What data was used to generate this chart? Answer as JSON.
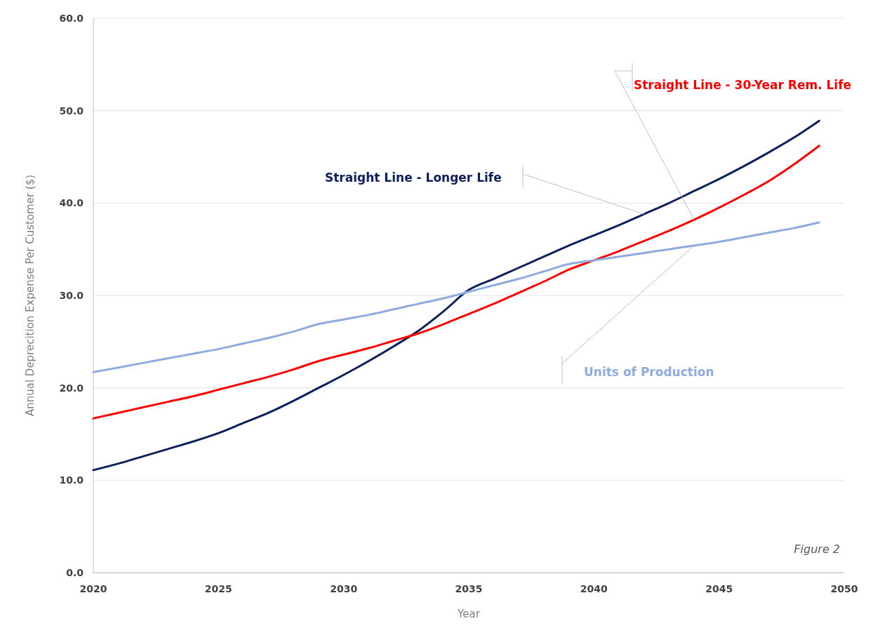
{
  "chart_data": {
    "type": "line",
    "xlabel": "Year",
    "ylabel": "Annual Deprecition Expense Per Customer ($)",
    "x": [
      2020,
      2021,
      2022,
      2023,
      2024,
      2025,
      2026,
      2027,
      2028,
      2029,
      2030,
      2031,
      2032,
      2033,
      2034,
      2035,
      2036,
      2037,
      2038,
      2039,
      2040,
      2041,
      2042,
      2043,
      2044,
      2045,
      2046,
      2047,
      2048,
      2049
    ],
    "series": [
      {
        "name": "Straight Line - Longer Life",
        "color": "#0d1f5c",
        "values": [
          11.1,
          11.8,
          12.6,
          13.4,
          14.2,
          15.1,
          16.2,
          17.3,
          18.6,
          20.0,
          21.4,
          22.9,
          24.5,
          26.2,
          28.3,
          30.6,
          31.8,
          33.0,
          34.2,
          35.4,
          36.5,
          37.6,
          38.8,
          40.0,
          41.3,
          42.6,
          44.0,
          45.5,
          47.1,
          48.9
        ]
      },
      {
        "name": "Straight Line - 30-Year Rem. Life",
        "color": "#ff0000",
        "values": [
          16.7,
          17.3,
          17.9,
          18.5,
          19.1,
          19.8,
          20.5,
          21.2,
          22.0,
          22.9,
          23.6,
          24.3,
          25.1,
          25.9,
          26.9,
          28.0,
          29.1,
          30.3,
          31.5,
          32.8,
          33.8,
          34.8,
          35.9,
          37.0,
          38.2,
          39.5,
          40.9,
          42.4,
          44.2,
          46.2
        ]
      },
      {
        "name": "Units of Production",
        "color": "#8eaadf",
        "values": [
          21.7,
          22.2,
          22.7,
          23.2,
          23.7,
          24.2,
          24.8,
          25.4,
          26.1,
          26.9,
          27.4,
          27.9,
          28.5,
          29.1,
          29.7,
          30.4,
          31.1,
          31.8,
          32.6,
          33.4,
          33.8,
          34.2,
          34.6,
          35.0,
          35.4,
          35.8,
          36.3,
          36.8,
          37.3,
          37.9
        ]
      }
    ],
    "xlim": [
      2020,
      2050
    ],
    "xticks": [
      2020,
      2025,
      2030,
      2035,
      2040,
      2045,
      2050
    ],
    "ylim": [
      0,
      60
    ],
    "yticks": [
      {
        "value": 0,
        "label": "0.0"
      },
      {
        "value": 10,
        "label": "10.0"
      },
      {
        "value": 20,
        "label": "20.0"
      },
      {
        "value": 30,
        "label": "30.0"
      },
      {
        "value": 40,
        "label": "40.0"
      },
      {
        "value": 50,
        "label": "50.0"
      },
      {
        "value": 60,
        "label": "60.0"
      }
    ],
    "grid": "y",
    "legend": false,
    "marker": "none",
    "line_style": "solid",
    "annotations": [
      "Figure 2"
    ]
  }
}
